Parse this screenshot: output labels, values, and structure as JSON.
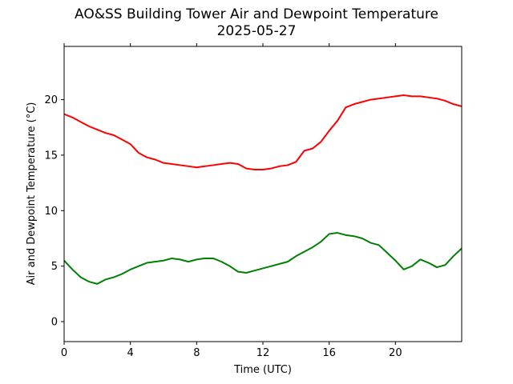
{
  "chart_data": {
    "type": "line",
    "title": "AO&SS Building Tower Air and Dewpoint Temperature",
    "subtitle": "2025-05-27",
    "xlabel": "Time (UTC)",
    "ylabel": "Air and Dewpoint Temperature (°C)",
    "xlim": [
      0,
      24
    ],
    "ylim": [
      -1.8,
      24.8
    ],
    "xticks": [
      0,
      4,
      8,
      12,
      16,
      20
    ],
    "yticks": [
      0,
      5,
      10,
      15,
      20
    ],
    "grid": false,
    "legend": "none",
    "x": [
      0,
      0.5,
      1,
      1.5,
      2,
      2.5,
      3,
      3.5,
      4,
      4.5,
      5,
      5.5,
      6,
      6.5,
      7,
      7.5,
      8,
      8.5,
      9,
      9.5,
      10,
      10.5,
      11,
      11.5,
      12,
      12.5,
      13,
      13.5,
      14,
      14.5,
      15,
      15.5,
      16,
      16.5,
      17,
      17.5,
      18,
      18.5,
      19,
      19.5,
      20,
      20.5,
      21,
      21.5,
      22,
      22.5,
      23,
      23.5,
      24
    ],
    "series": [
      {
        "color": "#ff0000",
        "values": [
          18.7,
          18.4,
          18.0,
          17.6,
          17.3,
          17.0,
          16.8,
          16.4,
          16.0,
          15.2,
          14.8,
          14.6,
          14.3,
          14.2,
          14.1,
          14.0,
          13.9,
          14.0,
          14.1,
          14.2,
          14.3,
          14.2,
          13.8,
          13.7,
          13.7,
          13.8,
          14.0,
          14.1,
          14.4,
          15.4,
          15.6,
          16.2,
          17.2,
          18.1,
          19.3,
          19.6,
          19.8,
          20.0,
          20.1,
          20.2,
          20.3,
          20.4,
          20.3,
          20.3,
          20.2,
          20.1,
          19.9,
          19.6,
          19.4
        ]
      },
      {
        "color": "#008000",
        "values": [
          5.5,
          4.7,
          4.0,
          3.6,
          3.4,
          3.8,
          4.0,
          4.3,
          4.7,
          5.0,
          5.3,
          5.4,
          5.5,
          5.7,
          5.6,
          5.4,
          5.6,
          5.7,
          5.7,
          5.4,
          5.0,
          4.5,
          4.4,
          4.6,
          4.8,
          5.0,
          5.2,
          5.4,
          5.9,
          6.3,
          6.7,
          7.2,
          7.9,
          8.0,
          7.8,
          7.7,
          7.5,
          7.1,
          6.9,
          6.2,
          5.5,
          4.7,
          5.0,
          5.6,
          5.3,
          4.9,
          5.1,
          5.9,
          6.6
        ]
      }
    ]
  }
}
